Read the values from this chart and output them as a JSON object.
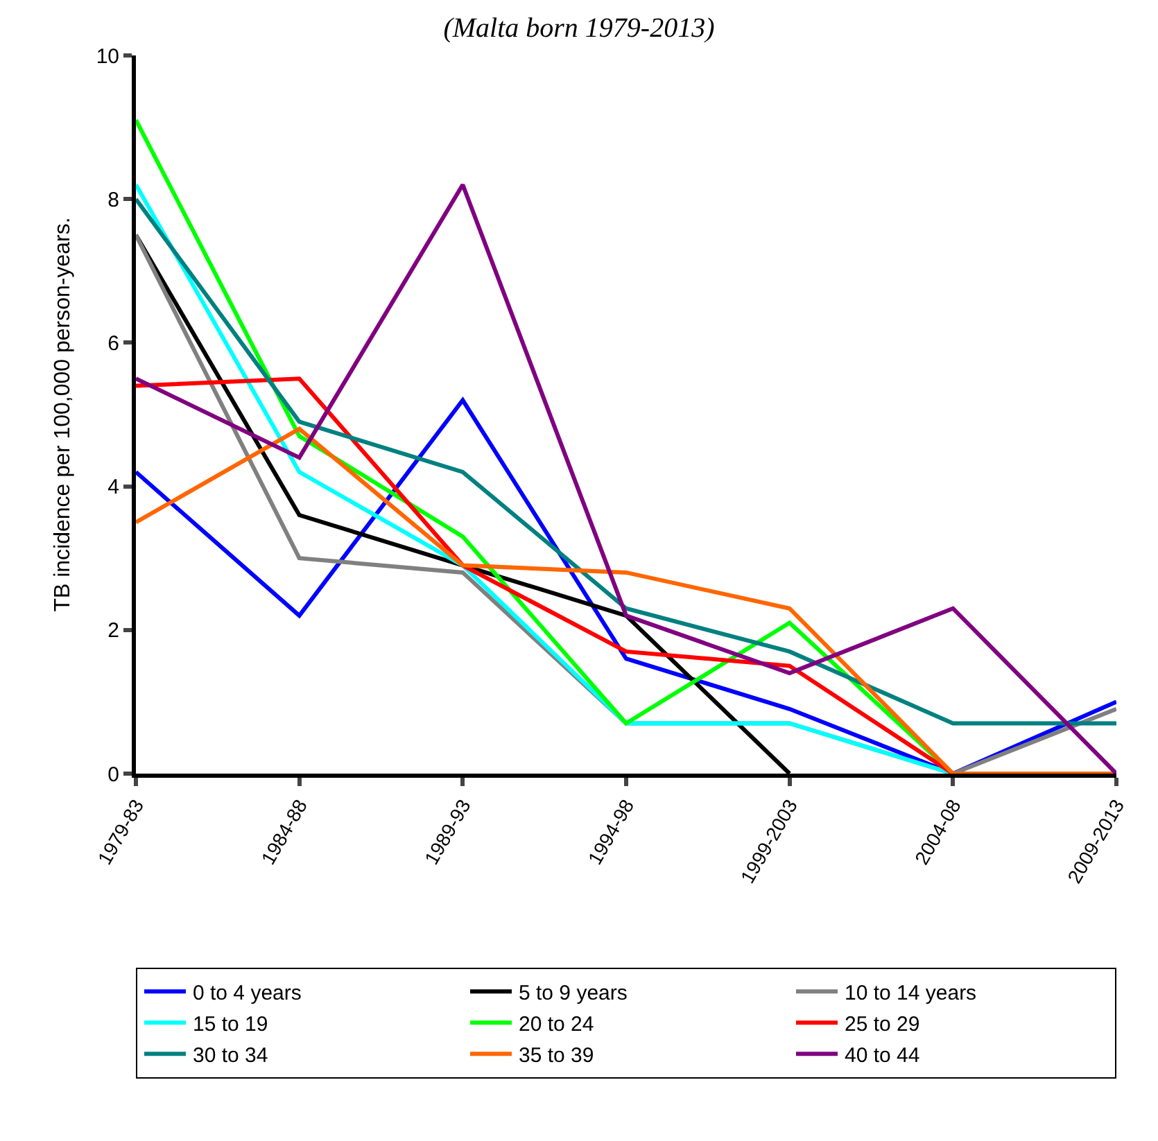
{
  "chart_data": {
    "type": "line",
    "title": "(Malta born 1979-2013)",
    "ylabel": "TB incidence per 100,000 person-years.",
    "categories": [
      "1979-83",
      "1984-88",
      "1989-93",
      "1994-98",
      "1999-2003",
      "2004-08",
      "2009-2013"
    ],
    "series": [
      {
        "name": "0 to 4 years",
        "color": "#0000ff",
        "values": [
          4.2,
          2.2,
          5.2,
          1.6,
          0.9,
          0,
          1.0
        ]
      },
      {
        "name": "5 to 9 years",
        "color": "#000000",
        "values": [
          7.5,
          3.6,
          2.9,
          2.2,
          0,
          null,
          null
        ]
      },
      {
        "name": "10 to 14 years",
        "color": "#808080",
        "values": [
          7.5,
          3.0,
          2.8,
          0.7,
          0.7,
          0,
          0.9
        ]
      },
      {
        "name": "15 to 19",
        "color": "#00ffff",
        "values": [
          8.2,
          4.2,
          2.9,
          0.7,
          0.7,
          0,
          0
        ]
      },
      {
        "name": "20 to 24",
        "color": "#00ff00",
        "values": [
          9.1,
          4.7,
          3.3,
          0.7,
          2.1,
          0,
          0
        ]
      },
      {
        "name": "25 to 29",
        "color": "#ff0000",
        "values": [
          5.4,
          5.5,
          2.9,
          1.7,
          1.5,
          0,
          0
        ]
      },
      {
        "name": "30 to 34",
        "color": "#008080",
        "values": [
          8.0,
          4.9,
          4.2,
          2.3,
          1.7,
          0.7,
          0.7
        ]
      },
      {
        "name": "35 to 39",
        "color": "#ff6600",
        "values": [
          3.5,
          4.8,
          2.9,
          2.8,
          2.3,
          0,
          0
        ]
      },
      {
        "name": "40 to 44",
        "color": "#800080",
        "values": [
          5.5,
          4.4,
          8.2,
          2.2,
          1.4,
          2.3,
          0
        ]
      }
    ],
    "ylim": [
      0,
      10
    ],
    "yticks": [
      0,
      2,
      4,
      6,
      8,
      10
    ],
    "legend": "bottom",
    "marker": "none",
    "line_style": "solid"
  }
}
